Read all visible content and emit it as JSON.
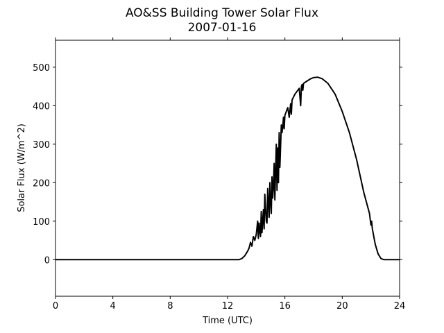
{
  "chart_data": {
    "type": "line",
    "title": "AO&SS Building Tower Solar Flux",
    "subtitle": "2007-01-16",
    "xlabel": "Time (UTC)",
    "ylabel": "Solar Flux (W/m^2)",
    "xlim": [
      0,
      24
    ],
    "ylim": [
      -95,
      570
    ],
    "xticks": [
      0,
      4,
      8,
      12,
      16,
      20,
      24
    ],
    "yticks": [
      0,
      100,
      200,
      300,
      400,
      500
    ],
    "grid": false,
    "line_color": "#000000",
    "series": [
      {
        "x": [
          0,
          6,
          12,
          12.8,
          13.0,
          13.2,
          13.4,
          13.5,
          13.6,
          13.7,
          13.8,
          13.9,
          14.0,
          14.1,
          14.15,
          14.2,
          14.3,
          14.35,
          14.4,
          14.5,
          14.55,
          14.6,
          14.7,
          14.75,
          14.8,
          14.9,
          14.95,
          15.0,
          15.05,
          15.1,
          15.15,
          15.2,
          15.25,
          15.3,
          15.35,
          15.4,
          15.45,
          15.5,
          15.55,
          15.6,
          15.65,
          15.7,
          15.75,
          15.8,
          15.85,
          15.9,
          15.95,
          16.0,
          16.1,
          16.2,
          16.3,
          16.4,
          16.45,
          16.5,
          16.7,
          17.0,
          17.1,
          17.15,
          17.2,
          17.25,
          17.3,
          17.5,
          17.8,
          18.0,
          18.3,
          18.6,
          19.0,
          19.5,
          20.0,
          20.5,
          21.0,
          21.5,
          21.9,
          22.0,
          22.05,
          22.1,
          22.3,
          22.5,
          22.7,
          22.9,
          23.1,
          23.5,
          24
        ],
        "values": [
          0,
          0,
          0,
          0,
          3,
          10,
          22,
          30,
          45,
          35,
          60,
          50,
          65,
          100,
          55,
          95,
          60,
          125,
          70,
          130,
          80,
          170,
          100,
          95,
          185,
          110,
          200,
          150,
          120,
          215,
          160,
          190,
          250,
          155,
          230,
          300,
          180,
          290,
          200,
          330,
          240,
          295,
          350,
          330,
          345,
          370,
          340,
          375,
          385,
          395,
          370,
          405,
          378,
          415,
          430,
          445,
          400,
          450,
          455,
          440,
          458,
          463,
          470,
          473,
          474,
          470,
          458,
          430,
          385,
          330,
          260,
          175,
          120,
          90,
          100,
          80,
          40,
          15,
          3,
          0,
          0,
          0,
          0
        ]
      }
    ]
  }
}
